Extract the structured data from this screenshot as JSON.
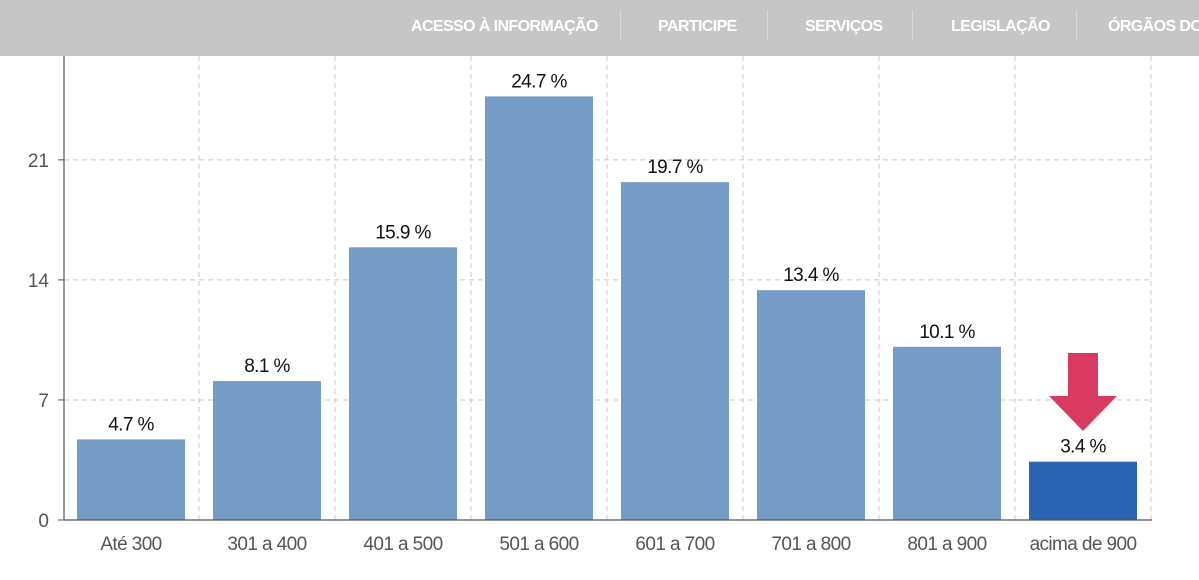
{
  "nav": {
    "items": [
      "ACESSO À INFORMAÇÃO",
      "PARTICIPE",
      "SERVIÇOS",
      "LEGISLAÇÃO",
      "ÓRGÃOS DO"
    ]
  },
  "colors": {
    "bar": "#759cc6",
    "bar_highlight": "#2c64b4",
    "arrow": "#d93a62",
    "topbar": "#c6c6c6"
  },
  "chart_data": {
    "type": "bar",
    "categories": [
      "Até 300",
      "301 a 400",
      "401 a 500",
      "501 a 600",
      "601 a 700",
      "701 a 800",
      "801 a 900",
      "acima de 900"
    ],
    "values": [
      4.7,
      8.1,
      15.9,
      24.7,
      19.7,
      13.4,
      10.1,
      3.4
    ],
    "data_labels": [
      "4.7 %",
      "8.1 %",
      "15.9 %",
      "24.7 %",
      "19.7 %",
      "13.4 %",
      "10.1 %",
      "3.4 %"
    ],
    "y_ticks": [
      0,
      7,
      14,
      21
    ],
    "ylim": [
      0,
      27
    ],
    "grid": true,
    "highlight_index": 7,
    "annotation": "arrow-down"
  }
}
